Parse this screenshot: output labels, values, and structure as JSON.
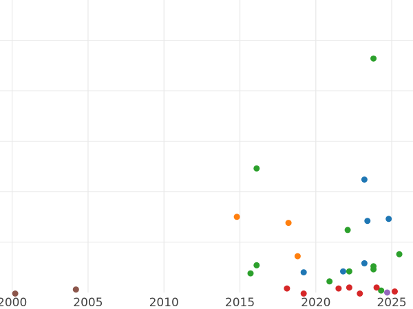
{
  "chart_data": {
    "type": "scatter",
    "title": "",
    "xlabel": "",
    "ylabel": "",
    "xlim": [
      1999.2,
      2026.4
    ],
    "ylim": [
      0,
      2.9
    ],
    "grid": true,
    "x_ticks": [
      "2000",
      "2005",
      "2010",
      "2015",
      "2020",
      "2025"
    ],
    "y_gridlines": [
      0.5,
      1.0,
      1.5,
      2.0,
      2.5
    ],
    "vertical_gridlines": [
      2000,
      2005,
      2010,
      2015,
      2020,
      2025
    ],
    "colors": {
      "blue": "#1f77b4",
      "orange": "#ff7f0e",
      "green": "#2ca02c",
      "red": "#d62728",
      "purple": "#9467bd",
      "brown": "#8c564b"
    },
    "series": [
      {
        "color": "#1f77b4",
        "points": [
          [
            2019.2,
            0.2
          ],
          [
            2021.8,
            0.21
          ],
          [
            2023.2,
            0.29
          ],
          [
            2023.4,
            0.71
          ],
          [
            2023.2,
            1.12
          ],
          [
            2024.8,
            0.73
          ]
        ]
      },
      {
        "color": "#ff7f0e",
        "points": [
          [
            2014.8,
            0.75
          ],
          [
            2018.2,
            0.69
          ],
          [
            2018.8,
            0.36
          ]
        ]
      },
      {
        "color": "#2ca02c",
        "points": [
          [
            2016.1,
            1.23
          ],
          [
            2016.1,
            0.27
          ],
          [
            2015.7,
            0.19
          ],
          [
            2020.9,
            0.11
          ],
          [
            2022.2,
            0.21
          ],
          [
            2022.1,
            0.62
          ],
          [
            2023.8,
            0.23
          ],
          [
            2023.8,
            0.26
          ],
          [
            2024.3,
            0.02
          ],
          [
            2025.5,
            0.38
          ],
          [
            2023.8,
            2.32
          ]
        ]
      },
      {
        "color": "#d62728",
        "points": [
          [
            2018.1,
            0.04
          ],
          [
            2019.2,
            -0.01
          ],
          [
            2021.5,
            0.04
          ],
          [
            2022.2,
            0.05
          ],
          [
            2022.9,
            -0.01
          ],
          [
            2024.0,
            0.05
          ],
          [
            2025.2,
            0.01
          ]
        ]
      },
      {
        "color": "#9467bd",
        "points": [
          [
            2024.7,
            0.0
          ]
        ]
      },
      {
        "color": "#8c564b",
        "points": [
          [
            2000.2,
            -0.01
          ],
          [
            2004.2,
            0.03
          ]
        ]
      }
    ]
  }
}
